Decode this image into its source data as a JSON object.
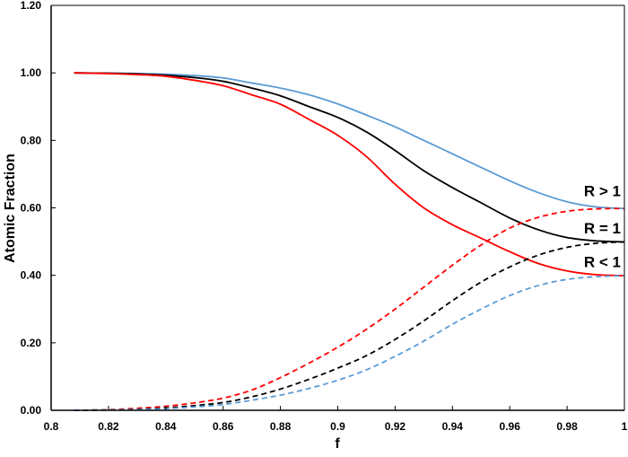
{
  "chart_data": {
    "type": "line",
    "title": "",
    "xlabel": "f",
    "ylabel": "Atomic Fraction",
    "xlim": [
      0.8,
      1.0
    ],
    "ylim": [
      0,
      1.2
    ],
    "x_ticks": [
      "0.8",
      "0.82",
      "0.84",
      "0.86",
      "0.88",
      "0.9",
      "0.92",
      "0.94",
      "0.96",
      "0.98",
      "1"
    ],
    "y_ticks": [
      "0.00",
      "0.20",
      "0.40",
      "0.60",
      "0.80",
      "1.00",
      "1.20"
    ],
    "grid": false,
    "x": [
      0.808,
      0.82,
      0.83,
      0.84,
      0.85,
      0.86,
      0.87,
      0.88,
      0.89,
      0.9,
      0.91,
      0.92,
      0.93,
      0.94,
      0.95,
      0.96,
      0.97,
      0.98,
      0.99,
      1.0
    ],
    "series": [
      {
        "color": "#5b9bd5",
        "style": "solid",
        "values": [
          1.0,
          0.999,
          0.998,
          0.996,
          0.992,
          0.985,
          0.97,
          0.955,
          0.935,
          0.908,
          0.875,
          0.84,
          0.8,
          0.76,
          0.72,
          0.68,
          0.645,
          0.618,
          0.603,
          0.598
        ]
      },
      {
        "color": "#000000",
        "style": "solid",
        "values": [
          1.0,
          0.999,
          0.997,
          0.993,
          0.986,
          0.975,
          0.955,
          0.932,
          0.9,
          0.868,
          0.825,
          0.77,
          0.71,
          0.66,
          0.615,
          0.57,
          0.535,
          0.512,
          0.502,
          0.499
        ]
      },
      {
        "color": "#ff0000",
        "style": "solid",
        "values": [
          1.0,
          0.998,
          0.995,
          0.99,
          0.978,
          0.962,
          0.935,
          0.907,
          0.862,
          0.815,
          0.752,
          0.67,
          0.6,
          0.55,
          0.51,
          0.47,
          0.435,
          0.413,
          0.402,
          0.399
        ]
      },
      {
        "color": "#ff0000",
        "style": "dashed",
        "values": [
          0,
          0.002,
          0.006,
          0.012,
          0.022,
          0.036,
          0.06,
          0.097,
          0.14,
          0.187,
          0.24,
          0.3,
          0.365,
          0.43,
          0.49,
          0.54,
          0.572,
          0.59,
          0.597,
          0.598
        ]
      },
      {
        "color": "#000000",
        "style": "dashed",
        "values": [
          0,
          0.001,
          0.003,
          0.007,
          0.014,
          0.023,
          0.04,
          0.063,
          0.092,
          0.125,
          0.162,
          0.21,
          0.265,
          0.325,
          0.38,
          0.425,
          0.46,
          0.483,
          0.495,
          0.499
        ]
      },
      {
        "color": "#5b9bd5",
        "style": "dashed",
        "values": [
          0,
          0.001,
          0.002,
          0.005,
          0.01,
          0.017,
          0.03,
          0.045,
          0.065,
          0.089,
          0.12,
          0.16,
          0.205,
          0.255,
          0.3,
          0.34,
          0.37,
          0.388,
          0.396,
          0.399
        ]
      }
    ],
    "annotations": [
      {
        "text": "R > 1",
        "x": 1.0,
        "y": 0.65
      },
      {
        "text": "R = 1",
        "x": 1.0,
        "y": 0.54
      },
      {
        "text": "R < 1",
        "x": 1.0,
        "y": 0.44
      }
    ]
  }
}
